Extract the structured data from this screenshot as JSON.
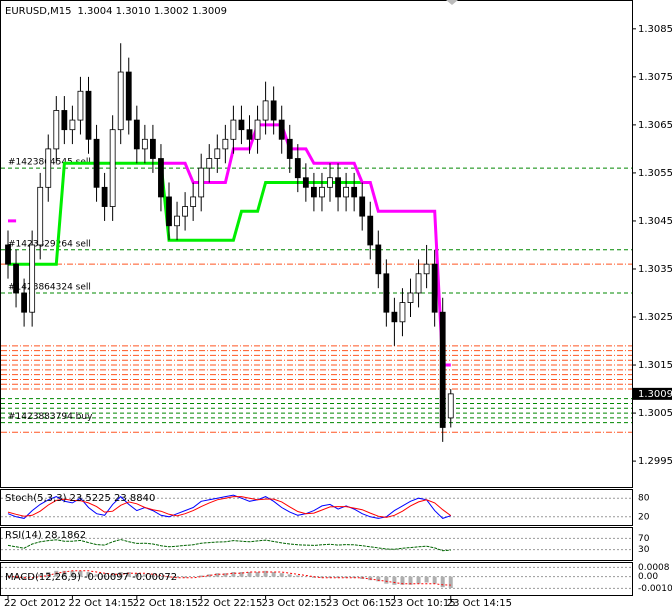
{
  "chart_data": {
    "type": "candlestick",
    "title": "EURUSD,M15",
    "readout": "1.3004 1.3010 1.3002 1.3009",
    "categories": [
      "22 Oct 2012",
      null,
      null,
      null,
      null,
      null,
      null,
      null,
      "22 Oct 14:15",
      null,
      null,
      null,
      null,
      null,
      null,
      null,
      "22 Oct 18:15",
      null,
      null,
      null,
      null,
      null,
      null,
      null,
      "22 Oct 22:15",
      null,
      null,
      null,
      null,
      null,
      null,
      null,
      "23 Oct 02:15",
      null,
      null,
      null,
      null,
      null,
      null,
      null,
      "23 Oct 06:15",
      null,
      null,
      null,
      null,
      null,
      null,
      null,
      "23 Oct 10:15",
      null,
      null,
      null,
      null,
      null,
      null,
      "23 Oct 14:15"
    ],
    "opens": [
      1.304,
      1.3036,
      1.303,
      1.3026,
      1.304,
      1.3052,
      1.306,
      1.3068,
      1.3064,
      1.3066,
      1.3072,
      1.3062,
      1.3052,
      1.3048,
      1.3064,
      1.3076,
      1.3066,
      1.306,
      1.3062,
      1.3058,
      1.305,
      1.3044,
      1.3046,
      1.3048,
      1.305,
      1.3056,
      1.3058,
      1.306,
      1.3062,
      1.3066,
      1.3064,
      1.3062,
      1.3066,
      1.307,
      1.3066,
      1.3062,
      1.3058,
      1.3054,
      1.3052,
      1.305,
      1.3052,
      1.3054,
      1.305,
      1.3052,
      1.305,
      1.3046,
      1.304,
      1.3034,
      1.3026,
      1.3024,
      1.3028,
      1.303,
      1.3034,
      1.3036,
      1.3026,
      1.3004
    ],
    "highs": [
      1.3043,
      1.3039,
      1.3033,
      1.3043,
      1.3055,
      1.3063,
      1.3071,
      1.3071,
      1.3069,
      1.3075,
      1.3075,
      1.3065,
      1.3055,
      1.3067,
      1.3082,
      1.3079,
      1.3069,
      1.3065,
      1.3065,
      1.3061,
      1.3053,
      1.3049,
      1.3051,
      1.3053,
      1.3059,
      1.3061,
      1.3063,
      1.3065,
      1.3069,
      1.3069,
      1.3067,
      1.3069,
      1.3074,
      1.3073,
      1.3069,
      1.3065,
      1.3061,
      1.3057,
      1.3055,
      1.3055,
      1.3057,
      1.3057,
      1.3055,
      1.3055,
      1.3053,
      1.3049,
      1.3043,
      1.3037,
      1.3029,
      1.3031,
      1.3033,
      1.3037,
      1.304,
      1.3039,
      1.3029,
      1.301
    ],
    "lows": [
      1.3033,
      1.3027,
      1.3023,
      1.3023,
      1.3037,
      1.3049,
      1.3057,
      1.3061,
      1.3061,
      1.3063,
      1.3059,
      1.3049,
      1.3045,
      1.3045,
      1.3061,
      1.3063,
      1.3057,
      1.3057,
      1.3055,
      1.3047,
      1.3041,
      1.3041,
      1.3043,
      1.3045,
      1.3047,
      1.3053,
      1.3055,
      1.3057,
      1.3059,
      1.3061,
      1.3059,
      1.3059,
      1.3063,
      1.3063,
      1.3059,
      1.3055,
      1.3051,
      1.3049,
      1.3047,
      1.3047,
      1.3049,
      1.3047,
      1.3047,
      1.3047,
      1.3043,
      1.3037,
      1.3031,
      1.3023,
      1.3019,
      1.3021,
      1.3025,
      1.3027,
      1.3031,
      1.3023,
      1.2999,
      1.3002
    ],
    "closes": [
      1.3036,
      1.303,
      1.3026,
      1.304,
      1.3052,
      1.306,
      1.3068,
      1.3064,
      1.3066,
      1.3072,
      1.3062,
      1.3052,
      1.3048,
      1.3064,
      1.3076,
      1.3066,
      1.306,
      1.3062,
      1.3058,
      1.305,
      1.3044,
      1.3046,
      1.3048,
      1.305,
      1.3056,
      1.3058,
      1.306,
      1.3062,
      1.3066,
      1.3064,
      1.3062,
      1.3066,
      1.307,
      1.3066,
      1.3062,
      1.3058,
      1.3054,
      1.3052,
      1.305,
      1.3052,
      1.3054,
      1.305,
      1.3052,
      1.305,
      1.3046,
      1.304,
      1.3034,
      1.3026,
      1.3024,
      1.3028,
      1.303,
      1.3034,
      1.3036,
      1.3026,
      1.3002,
      1.3009
    ],
    "ylim": [
      1.29894,
      1.3091
    ],
    "yticks": [
      1.3085,
      1.3075,
      1.3065,
      1.3055,
      1.3045,
      1.3035,
      1.3025,
      1.3015,
      1.3005,
      1.2995
    ],
    "trail_up": {
      "color": "#00ee00",
      "values": [
        1.3036,
        1.3036,
        1.3036,
        1.3036,
        1.3036,
        1.3036,
        1.3036,
        1.3057,
        1.3057,
        1.3057,
        1.3057,
        1.3057,
        1.3057,
        1.3057,
        1.3057,
        1.3057,
        1.3057,
        1.3057,
        1.3057,
        1.3057,
        1.3041,
        1.3041,
        1.3041,
        1.3041,
        1.3041,
        1.3041,
        1.3041,
        1.3041,
        1.3041,
        1.3047,
        1.3047,
        1.3047,
        1.3053,
        1.3053,
        1.3053,
        1.3053,
        1.3053,
        1.3053,
        1.3053,
        1.3053,
        1.3053,
        1.3053,
        1.3053,
        1.3053,
        1.3053,
        1.3053,
        null,
        null,
        null,
        null,
        null,
        null,
        null,
        null,
        null,
        null
      ]
    },
    "trail_down": {
      "color": "#ff00ff",
      "values": [
        1.3045,
        1.3045,
        null,
        null,
        null,
        null,
        null,
        null,
        null,
        null,
        null,
        null,
        null,
        null,
        null,
        null,
        null,
        null,
        null,
        1.3057,
        1.3057,
        1.3057,
        1.3057,
        1.3053,
        1.3053,
        1.3053,
        1.3053,
        1.3053,
        1.306,
        1.306,
        1.306,
        1.3065,
        1.3065,
        1.3065,
        1.3065,
        1.306,
        1.306,
        1.306,
        1.3057,
        1.3057,
        1.3057,
        1.3057,
        1.3057,
        1.3057,
        1.3053,
        1.3053,
        1.3047,
        1.3047,
        1.3047,
        1.3047,
        1.3047,
        1.3047,
        1.3047,
        1.3047,
        1.3015,
        1.3015
      ]
    },
    "orders": [
      {
        "label": "#1423864545 sell",
        "value": 1.3056
      },
      {
        "label": "#1423829264 sell",
        "value": 1.3039
      },
      {
        "label": "#1423864324 sell",
        "value": 1.303
      },
      {
        "label": "#1423883794 buy",
        "value": 1.3003
      }
    ],
    "buy_levels": [
      1.3008,
      1.3007,
      1.3006,
      1.3005,
      1.3004
    ],
    "buy_color": "#008800",
    "sell_levels": [
      1.3036,
      1.3019,
      1.3018,
      1.3017,
      1.3016,
      1.3015,
      1.3014,
      1.3013,
      1.3012,
      1.3011,
      1.301,
      1.3001
    ],
    "sell_color": "#ff5522",
    "stoch": {
      "label": "Stoch(5,3,3)",
      "readout": "23.5225 23.8840",
      "ylim": [
        0,
        100
      ],
      "yticks": [
        20,
        80
      ],
      "main": {
        "color": "#0000ff",
        "values": [
          30,
          20,
          15,
          40,
          60,
          75,
          85,
          70,
          65,
          80,
          50,
          30,
          25,
          60,
          85,
          60,
          40,
          50,
          40,
          25,
          20,
          30,
          40,
          50,
          70,
          75,
          80,
          85,
          90,
          80,
          70,
          75,
          85,
          70,
          50,
          35,
          25,
          30,
          40,
          55,
          60,
          45,
          55,
          45,
          30,
          20,
          15,
          20,
          40,
          55,
          70,
          80,
          75,
          40,
          15,
          23.5225
        ]
      },
      "signal": {
        "color": "#ff0000",
        "values": [
          35,
          28,
          22,
          25,
          38,
          58,
          73,
          77,
          73,
          72,
          65,
          53,
          35,
          38,
          57,
          68,
          62,
          50,
          43,
          38,
          28,
          23,
          30,
          40,
          53,
          65,
          75,
          80,
          85,
          85,
          80,
          75,
          77,
          77,
          68,
          52,
          37,
          30,
          32,
          42,
          52,
          53,
          53,
          48,
          43,
          32,
          22,
          18,
          25,
          38,
          55,
          68,
          75,
          65,
          43,
          23.884
        ]
      }
    },
    "rsi": {
      "label": "RSI(14)",
      "readout": "28.1862",
      "ylim": [
        0,
        100
      ],
      "yticks": [
        30,
        70
      ],
      "color": "#006400",
      "values": [
        45,
        40,
        35,
        50,
        58,
        62,
        65,
        60,
        60,
        63,
        55,
        48,
        46,
        58,
        66,
        58,
        52,
        53,
        50,
        44,
        40,
        42,
        45,
        47,
        53,
        55,
        57,
        58,
        62,
        60,
        58,
        61,
        64,
        59,
        54,
        50,
        47,
        46,
        45,
        47,
        49,
        46,
        48,
        47,
        44,
        40,
        36,
        32,
        31,
        35,
        37,
        40,
        42,
        36,
        26,
        28.1862
      ]
    },
    "macd": {
      "label": "MACD(12,26,9)",
      "readout": "-0.00097 -0.00072",
      "ylim": [
        -0.0014,
        0.001
      ],
      "yticks": [
        0.0008,
        {
          "value": 0,
          "label": "0.00"
        },
        {
          "value": -0.001,
          "label": "-0.0010"
        }
      ],
      "histogram": {
        "color": "#b0b0b0",
        "values": [
          0.0001,
          -0.0001,
          -0.0002,
          0,
          0.0002,
          0.0004,
          0.0005,
          0.0005,
          0.0005,
          0.0005,
          0.0004,
          0.0002,
          0.0001,
          0.0002,
          0.0004,
          0.0004,
          0.0003,
          0.0002,
          0.0001,
          0,
          -0.0001,
          -0.0001,
          -0.0001,
          0,
          0.0001,
          0.0002,
          0.0003,
          0.0003,
          0.0004,
          0.0004,
          0.0004,
          0.0004,
          0.0005,
          0.0004,
          0.0003,
          0.0002,
          0.0001,
          0,
          -0.0001,
          -0.0001,
          -0.0001,
          -0.0001,
          -0.0001,
          -0.0001,
          -0.0002,
          -0.0003,
          -0.0004,
          -0.0006,
          -0.0007,
          -0.0007,
          -0.0007,
          -0.0006,
          -0.0005,
          -0.0006,
          -0.0009,
          -0.00097
        ]
      },
      "signal": {
        "color": "#ff0000",
        "values": [
          0,
          0,
          -0.0001,
          -0.0001,
          0,
          0.0001,
          0.0003,
          0.0004,
          0.0005,
          0.0005,
          0.0005,
          0.0004,
          0.0003,
          0.0002,
          0.0002,
          0.0003,
          0.0003,
          0.0003,
          0.0002,
          0.0001,
          0,
          -0.0001,
          -0.0001,
          -0.0001,
          0,
          0.0001,
          0.0002,
          0.0002,
          0.0003,
          0.0003,
          0.0004,
          0.0004,
          0.0004,
          0.0004,
          0.0004,
          0.0003,
          0.0002,
          0.0001,
          0,
          -0.0001,
          -0.0001,
          -0.0001,
          -0.0001,
          -0.0001,
          -0.0001,
          -0.0002,
          -0.0003,
          -0.0004,
          -0.0005,
          -0.0006,
          -0.0006,
          -0.0006,
          -0.0006,
          -0.0006,
          -0.0007,
          -0.00072
        ]
      }
    }
  }
}
